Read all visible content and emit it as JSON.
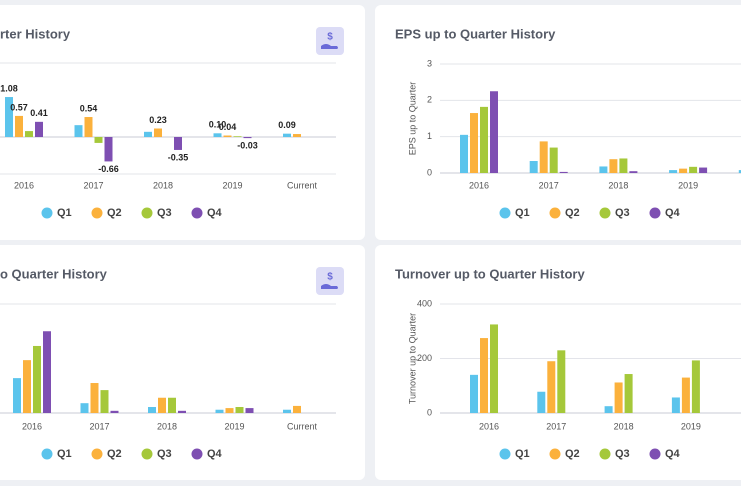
{
  "chart_data": [
    {
      "type": "bar",
      "title": "rter History",
      "legend": "bottom",
      "categories": [
        "2016",
        "2017",
        "2018",
        "2019",
        "Current"
      ],
      "ylim": [
        -1,
        2
      ],
      "series": [
        {
          "name": "Q1",
          "color": "#5bc4ec",
          "values": [
            1.08,
            0.32,
            0.14,
            0.1,
            0.09
          ],
          "value_labels": [
            "1.08",
            null,
            null,
            "0.10",
            "0.09"
          ]
        },
        {
          "name": "Q2",
          "color": "#fbb13c",
          "values": [
            0.57,
            0.54,
            0.23,
            0.04,
            0.08
          ],
          "value_labels": [
            "0.57",
            "0.54",
            "0.23",
            "0.04",
            null
          ]
        },
        {
          "name": "Q3",
          "color": "#a5c83a",
          "values": [
            0.16,
            -0.16,
            null,
            0.02,
            null
          ],
          "value_labels": [
            null,
            null,
            null,
            null,
            null
          ]
        },
        {
          "name": "Q4",
          "color": "#7e4fb2",
          "values": [
            0.41,
            -0.66,
            -0.35,
            -0.03,
            null
          ],
          "value_labels": [
            "0.41",
            "-0.66",
            "-0.35",
            "-0.03",
            null
          ]
        }
      ]
    },
    {
      "type": "bar",
      "title": "EPS up to Quarter History",
      "ylabel": "EPS up to Quarter",
      "legend": "bottom",
      "categories": [
        "2016",
        "2017",
        "2018",
        "2019",
        null
      ],
      "ylim": [
        0,
        3
      ],
      "yticks": [
        0,
        1,
        2,
        3
      ],
      "series": [
        {
          "name": "Q1",
          "color": "#5bc4ec",
          "values": [
            1.05,
            0.33,
            0.18,
            0.08,
            0.08
          ]
        },
        {
          "name": "Q2",
          "color": "#fbb13c",
          "values": [
            1.65,
            0.87,
            0.38,
            0.12,
            null
          ]
        },
        {
          "name": "Q3",
          "color": "#a5c83a",
          "values": [
            1.82,
            0.7,
            0.4,
            0.17,
            null
          ]
        },
        {
          "name": "Q4",
          "color": "#7e4fb2",
          "values": [
            2.25,
            0.03,
            0.05,
            0.15,
            null
          ]
        }
      ]
    },
    {
      "type": "bar",
      "title": "o Quarter History",
      "legend": "bottom",
      "categories": [
        "2016",
        "2017",
        "2018",
        "2019",
        "Current"
      ],
      "ylim": [
        0,
        2
      ],
      "series": [
        {
          "name": "Q1",
          "color": "#5bc4ec",
          "values": [
            0.64,
            0.18,
            0.11,
            0.06,
            0.06
          ]
        },
        {
          "name": "Q2",
          "color": "#fbb13c",
          "values": [
            0.97,
            0.55,
            0.28,
            0.09,
            0.13
          ]
        },
        {
          "name": "Q3",
          "color": "#a5c83a",
          "values": [
            1.23,
            0.42,
            0.28,
            0.11,
            null
          ]
        },
        {
          "name": "Q4",
          "color": "#7e4fb2",
          "values": [
            1.5,
            0.04,
            0.04,
            0.09,
            null
          ]
        }
      ]
    },
    {
      "type": "bar",
      "title": "Turnover up to Quarter History",
      "ylabel": "Turnover up to Quarter",
      "legend": "bottom",
      "categories": [
        "2016",
        "2017",
        "2018",
        "2019"
      ],
      "ylim": [
        0,
        400
      ],
      "yticks": [
        0,
        200,
        400
      ],
      "series": [
        {
          "name": "Q1",
          "color": "#5bc4ec",
          "values": [
            140,
            78,
            25,
            57
          ]
        },
        {
          "name": "Q2",
          "color": "#fbb13c",
          "values": [
            275,
            190,
            112,
            130
          ]
        },
        {
          "name": "Q3",
          "color": "#a5c83a",
          "values": [
            325,
            230,
            143,
            193
          ]
        },
        {
          "name": "Q4",
          "color": "#7e4fb2",
          "values": [
            null,
            null,
            null,
            null
          ]
        }
      ]
    }
  ]
}
